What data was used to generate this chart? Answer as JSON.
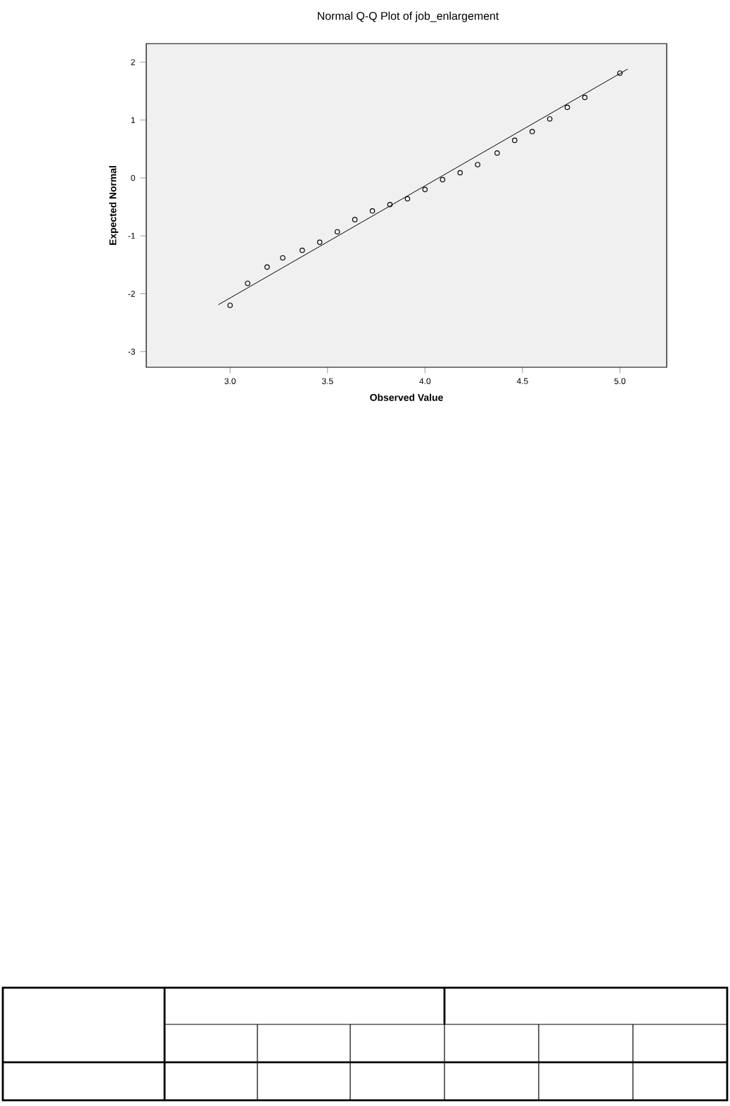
{
  "chart_data": {
    "type": "scatter",
    "title": "Normal Q-Q Plot of job_enlargement",
    "xlabel": "Observed Value",
    "ylabel": "Expected Normal",
    "series": [
      {
        "color": "#000000",
        "marker": "circle",
        "x": [
          3.0,
          3.09,
          3.19,
          3.27,
          3.37,
          3.46,
          3.55,
          3.64,
          3.73,
          3.82,
          3.91,
          4.0,
          4.09,
          4.18,
          4.27,
          4.37,
          4.46,
          4.55,
          4.64,
          4.73,
          4.82,
          5.0
        ],
        "values": [
          -2.2,
          -1.82,
          -1.54,
          -1.38,
          -1.25,
          -1.11,
          -0.93,
          -0.72,
          -0.57,
          -0.46,
          -0.36,
          -0.2,
          -0.03,
          0.09,
          0.23,
          0.43,
          0.65,
          0.8,
          1.02,
          1.22,
          1.39,
          1.81
        ]
      },
      {
        "type": "line",
        "color": "#000000",
        "line_style": "solid",
        "x": [
          2.94,
          5.04
        ],
        "values": [
          -2.19,
          1.88
        ]
      }
    ],
    "xlim": [
      2.57,
      5.24
    ],
    "ylim": [
      -3.27,
      2.32
    ],
    "xticks": [
      {
        "value": 3.0,
        "label": "3.0"
      },
      {
        "value": 3.5,
        "label": "3.5"
      },
      {
        "value": 4.0,
        "label": "4.0"
      },
      {
        "value": 4.5,
        "label": "4.5"
      },
      {
        "value": 5.0,
        "label": "5.0"
      }
    ],
    "yticks": [
      -3,
      -2,
      -1,
      0,
      1,
      2
    ]
  }
}
